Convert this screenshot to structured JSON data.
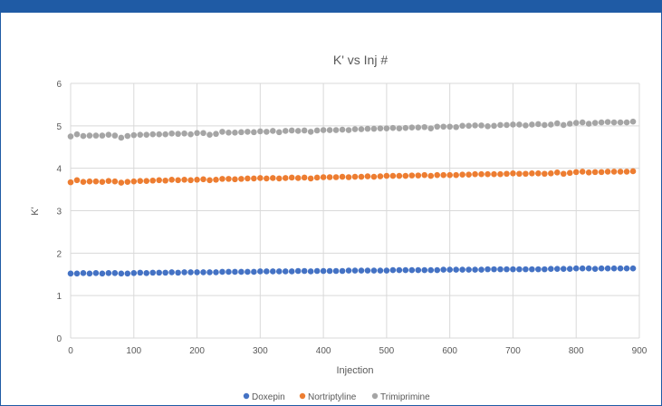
{
  "colors": {
    "header_bar": "#1f5ba5",
    "doxepin": "#4472c4",
    "nortriptyline": "#ed7d31",
    "trimiprimine": "#a5a5a5",
    "grid": "#d9d9d9",
    "text": "#595959"
  },
  "chart_data": {
    "type": "scatter",
    "title": "K' vs Inj #",
    "xlabel": "Injection",
    "ylabel": "K'",
    "xlim": [
      0,
      900
    ],
    "ylim": [
      0,
      6
    ],
    "xticks": [
      0,
      100,
      200,
      300,
      400,
      500,
      600,
      700,
      800,
      900
    ],
    "yticks": [
      0,
      1,
      2,
      3,
      4,
      5,
      6
    ],
    "grid": true,
    "legend_position": "bottom",
    "x": [
      0,
      10,
      20,
      30,
      40,
      50,
      60,
      70,
      80,
      90,
      100,
      110,
      120,
      130,
      140,
      150,
      160,
      170,
      180,
      190,
      200,
      210,
      220,
      230,
      240,
      250,
      260,
      270,
      280,
      290,
      300,
      310,
      320,
      330,
      340,
      350,
      360,
      370,
      380,
      390,
      400,
      410,
      420,
      430,
      440,
      450,
      460,
      470,
      480,
      490,
      500,
      510,
      520,
      530,
      540,
      550,
      560,
      570,
      580,
      590,
      600,
      610,
      620,
      630,
      640,
      650,
      660,
      670,
      680,
      690,
      700,
      710,
      720,
      730,
      740,
      750,
      760,
      770,
      780,
      790,
      800,
      810,
      820,
      830,
      840,
      850,
      860,
      870,
      880,
      890
    ],
    "series": [
      {
        "name": "Doxepin",
        "values": [
          1.52,
          1.52,
          1.53,
          1.52,
          1.53,
          1.52,
          1.53,
          1.53,
          1.52,
          1.52,
          1.53,
          1.54,
          1.53,
          1.54,
          1.54,
          1.54,
          1.55,
          1.54,
          1.55,
          1.55,
          1.55,
          1.55,
          1.55,
          1.55,
          1.56,
          1.56,
          1.56,
          1.56,
          1.56,
          1.56,
          1.57,
          1.57,
          1.57,
          1.57,
          1.57,
          1.57,
          1.58,
          1.58,
          1.57,
          1.58,
          1.58,
          1.58,
          1.58,
          1.58,
          1.59,
          1.59,
          1.59,
          1.59,
          1.59,
          1.59,
          1.59,
          1.6,
          1.6,
          1.6,
          1.6,
          1.6,
          1.6,
          1.6,
          1.6,
          1.61,
          1.61,
          1.61,
          1.61,
          1.61,
          1.61,
          1.61,
          1.62,
          1.62,
          1.62,
          1.62,
          1.62,
          1.62,
          1.62,
          1.62,
          1.62,
          1.62,
          1.63,
          1.63,
          1.63,
          1.63,
          1.64,
          1.64,
          1.64,
          1.63,
          1.64,
          1.64,
          1.64,
          1.64,
          1.64,
          1.64
        ]
      },
      {
        "name": "Nortriptyline",
        "values": [
          3.67,
          3.72,
          3.68,
          3.69,
          3.69,
          3.68,
          3.7,
          3.69,
          3.66,
          3.68,
          3.69,
          3.7,
          3.7,
          3.71,
          3.72,
          3.71,
          3.73,
          3.72,
          3.73,
          3.72,
          3.73,
          3.74,
          3.72,
          3.73,
          3.75,
          3.75,
          3.74,
          3.75,
          3.76,
          3.76,
          3.77,
          3.76,
          3.77,
          3.76,
          3.77,
          3.78,
          3.77,
          3.78,
          3.76,
          3.78,
          3.79,
          3.79,
          3.79,
          3.8,
          3.79,
          3.8,
          3.8,
          3.81,
          3.8,
          3.81,
          3.82,
          3.82,
          3.82,
          3.82,
          3.83,
          3.83,
          3.84,
          3.82,
          3.84,
          3.84,
          3.84,
          3.84,
          3.85,
          3.85,
          3.86,
          3.86,
          3.86,
          3.86,
          3.86,
          3.87,
          3.88,
          3.87,
          3.87,
          3.88,
          3.88,
          3.87,
          3.88,
          3.9,
          3.87,
          3.89,
          3.91,
          3.92,
          3.9,
          3.91,
          3.91,
          3.92,
          3.92,
          3.92,
          3.92,
          3.93
        ]
      },
      {
        "name": "Trimiprimine",
        "values": [
          4.75,
          4.8,
          4.76,
          4.77,
          4.77,
          4.77,
          4.79,
          4.77,
          4.72,
          4.76,
          4.78,
          4.79,
          4.79,
          4.8,
          4.8,
          4.8,
          4.82,
          4.81,
          4.82,
          4.8,
          4.83,
          4.83,
          4.79,
          4.81,
          4.86,
          4.84,
          4.84,
          4.85,
          4.86,
          4.85,
          4.87,
          4.86,
          4.88,
          4.85,
          4.88,
          4.89,
          4.88,
          4.89,
          4.86,
          4.89,
          4.9,
          4.9,
          4.9,
          4.91,
          4.9,
          4.92,
          4.92,
          4.93,
          4.93,
          4.94,
          4.94,
          4.95,
          4.94,
          4.95,
          4.96,
          4.96,
          4.97,
          4.94,
          4.98,
          4.98,
          4.98,
          4.97,
          5.0,
          5.0,
          5.01,
          5.01,
          4.99,
          5.0,
          5.02,
          5.02,
          5.03,
          5.03,
          5.01,
          5.03,
          5.04,
          5.02,
          5.03,
          5.06,
          5.02,
          5.05,
          5.07,
          5.08,
          5.05,
          5.07,
          5.08,
          5.09,
          5.08,
          5.08,
          5.08,
          5.1
        ]
      }
    ]
  }
}
